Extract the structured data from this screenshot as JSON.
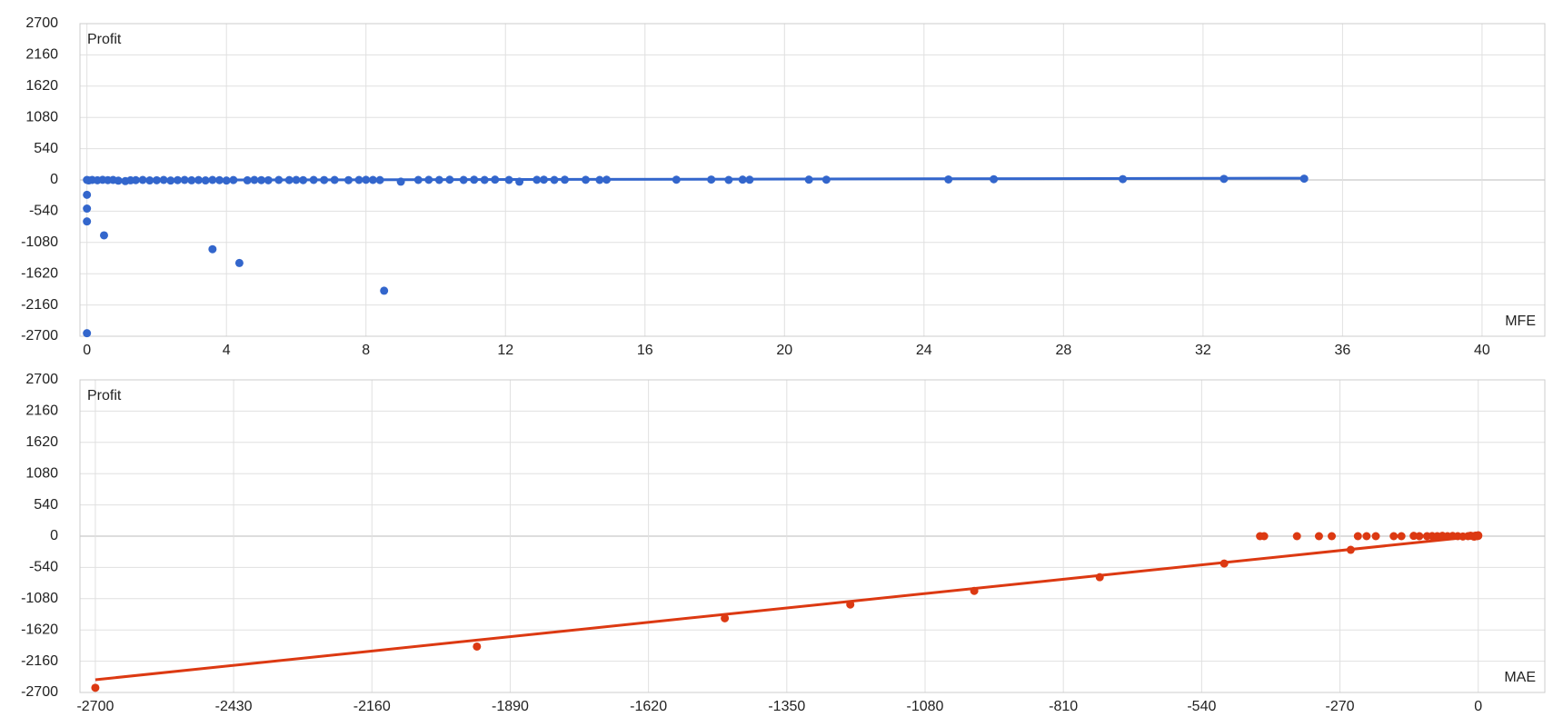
{
  "chart_data": [
    {
      "type": "scatter",
      "y_label": "Profit",
      "x_label": "MFE",
      "color": "#3366cc",
      "grid": true,
      "x": [
        0,
        0,
        0,
        0,
        0,
        0.49,
        3.6,
        4.37,
        8.52,
        0.05,
        0.15,
        0.3,
        0.45,
        0.6,
        0.75,
        0.9,
        1.1,
        1.25,
        1.4,
        1.6,
        1.8,
        2.0,
        2.2,
        2.4,
        2.6,
        2.8,
        3.0,
        3.2,
        3.4,
        3.6,
        3.8,
        4.0,
        4.2,
        4.6,
        4.8,
        5.0,
        5.2,
        5.5,
        5.8,
        6.0,
        6.2,
        6.5,
        6.8,
        7.1,
        7.5,
        7.8,
        8.0,
        8.2,
        8.4,
        9.0,
        9.5,
        9.8,
        10.1,
        10.4,
        10.8,
        11.1,
        11.4,
        11.7,
        12.1,
        12.4,
        12.9,
        13.1,
        13.4,
        13.7,
        14.3,
        14.7,
        14.9,
        16.9,
        17.9,
        18.4,
        18.8,
        19.0,
        20.7,
        21.2,
        24.7,
        26.0,
        29.7,
        32.6,
        34.9
      ],
      "y": [
        -257,
        -495,
        -717,
        -2648,
        0,
        -957,
        -1196,
        -1435,
        -1914,
        -8,
        0,
        -5,
        2,
        -3,
        0,
        -12,
        -20,
        -6,
        -4,
        0,
        -8,
        -5,
        0,
        -10,
        -3,
        0,
        -6,
        -2,
        -8,
        0,
        -4,
        -10,
        -2,
        -6,
        0,
        -3,
        -5,
        0,
        -2,
        0,
        -4,
        0,
        -1,
        0,
        -3,
        0,
        2,
        0,
        -2,
        -30,
        0,
        2,
        0,
        4,
        0,
        3,
        0,
        5,
        0,
        -30,
        2,
        4,
        0,
        3,
        2,
        0,
        4,
        4,
        6,
        0,
        5,
        3,
        5,
        4,
        8,
        12,
        14,
        18,
        22
      ],
      "trendline": {
        "x": [
          0,
          34.9
        ],
        "y": [
          -5,
          30
        ]
      },
      "xlim": [
        -0.2,
        41.8
      ],
      "ylim": [
        -2700,
        2700
      ],
      "xticks": [
        0,
        4,
        8,
        12,
        16,
        20,
        24,
        28,
        32,
        36,
        40
      ],
      "yticks": [
        2700,
        2160,
        1620,
        1080,
        540,
        0,
        -540,
        -1080,
        -1620,
        -2160,
        -2700
      ]
    },
    {
      "type": "scatter",
      "y_label": "Profit",
      "x_label": "MAE",
      "color": "#dc3912",
      "grid": true,
      "x": [
        -2700,
        -1955,
        -1471,
        -1226,
        -984,
        -739,
        -496,
        -249,
        -426,
        -418,
        -354,
        -311,
        -286,
        -235,
        -218,
        -200,
        -165,
        -150,
        -126,
        -115,
        -100,
        -90,
        -80,
        -70,
        -60,
        -50,
        -40,
        -30,
        -20,
        -15,
        -10,
        -8,
        -5,
        -2,
        0,
        0
      ],
      "y": [
        -2619,
        -1907,
        -1418,
        -1181,
        -945,
        -709,
        -472,
        -236,
        0,
        0,
        0,
        0,
        0,
        0,
        0,
        0,
        0,
        0,
        5,
        0,
        0,
        2,
        0,
        5,
        0,
        3,
        0,
        -5,
        0,
        8,
        0,
        -8,
        10,
        0,
        15,
        5
      ],
      "trendline": {
        "x": [
          -2700,
          0
        ],
        "y": [
          -2480,
          0
        ]
      },
      "xlim": [
        -2730,
        130
      ],
      "ylim": [
        -2700,
        2700
      ],
      "xticks": [
        -2700,
        -2430,
        -2160,
        -1890,
        -1620,
        -1350,
        -1080,
        -810,
        -540,
        -270,
        0
      ],
      "yticks": [
        2700,
        2160,
        1620,
        1080,
        540,
        0,
        -540,
        -1080,
        -1620,
        -2160,
        -2700
      ]
    }
  ]
}
